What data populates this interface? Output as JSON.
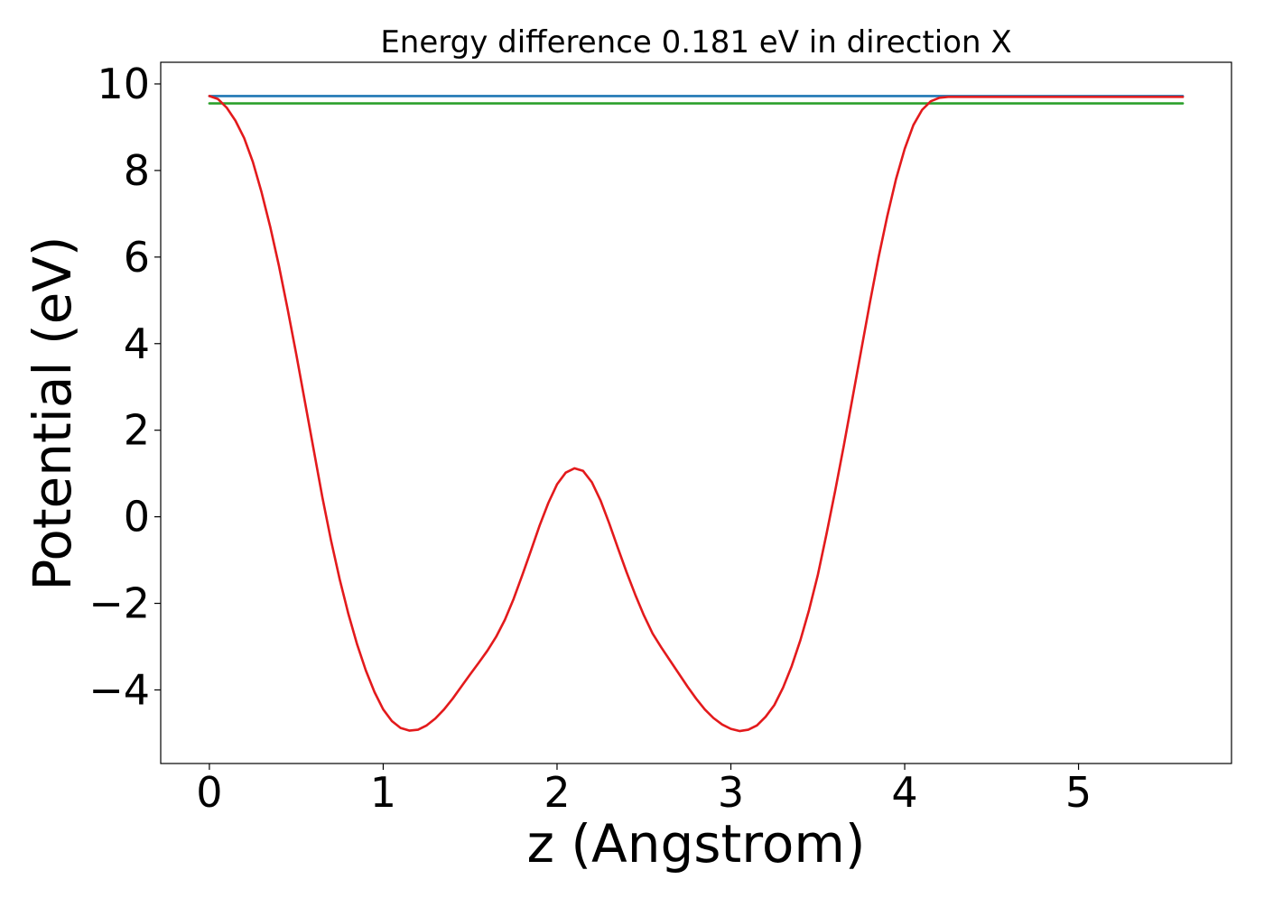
{
  "chart_data": {
    "type": "line",
    "title": "Energy difference 0.181 eV in direction X",
    "xlabel": "z (Angstrom)",
    "ylabel": "Potential (eV)",
    "xlim": [
      -0.28,
      5.88
    ],
    "ylim": [
      -5.7,
      10.5
    ],
    "xticks": [
      0,
      1,
      2,
      3,
      4,
      5
    ],
    "xtick_labels": [
      "0",
      "1",
      "2",
      "3",
      "4",
      "5"
    ],
    "yticks": [
      -4,
      -2,
      0,
      2,
      4,
      6,
      8,
      10
    ],
    "ytick_labels": [
      "−4",
      "−2",
      "0",
      "2",
      "4",
      "6",
      "8",
      "10"
    ],
    "grid": false,
    "series": [
      {
        "color": "#1f77b4",
        "x": [
          0,
          5.6
        ],
        "y": [
          9.72,
          9.72
        ]
      },
      {
        "color": "#2ca02c",
        "x": [
          0,
          5.6
        ],
        "y": [
          9.55,
          9.55
        ]
      },
      {
        "color": "#e31a1c",
        "x": [
          0,
          0.05,
          0.1,
          0.15,
          0.2,
          0.25,
          0.3,
          0.35,
          0.4,
          0.45,
          0.5,
          0.55,
          0.6,
          0.65,
          0.7,
          0.75,
          0.8,
          0.85,
          0.9,
          0.95,
          1.0,
          1.05,
          1.1,
          1.15,
          1.2,
          1.25,
          1.3,
          1.35,
          1.4,
          1.45,
          1.5,
          1.55,
          1.6,
          1.65,
          1.7,
          1.75,
          1.8,
          1.85,
          1.9,
          1.95,
          2.0,
          2.05,
          2.1,
          2.15,
          2.2,
          2.25,
          2.3,
          2.35,
          2.4,
          2.45,
          2.5,
          2.55,
          2.6,
          2.65,
          2.7,
          2.75,
          2.8,
          2.85,
          2.9,
          2.95,
          3.0,
          3.05,
          3.1,
          3.15,
          3.2,
          3.25,
          3.3,
          3.35,
          3.4,
          3.45,
          3.5,
          3.55,
          3.6,
          3.65,
          3.7,
          3.75,
          3.8,
          3.85,
          3.9,
          3.95,
          4.0,
          4.05,
          4.1,
          4.15,
          4.2,
          4.25,
          4.3,
          4.35,
          4.4,
          4.45,
          4.5,
          4.55,
          4.6,
          4.65,
          4.7,
          4.75,
          4.8,
          4.85,
          4.9,
          4.95,
          5.0,
          5.05,
          5.1,
          5.15,
          5.2,
          5.25,
          5.3,
          5.35,
          5.4,
          5.45,
          5.5,
          5.55,
          5.6
        ],
        "y": [
          9.72,
          9.65,
          9.45,
          9.15,
          8.75,
          8.2,
          7.5,
          6.7,
          5.8,
          4.8,
          3.75,
          2.65,
          1.55,
          0.45,
          -0.55,
          -1.45,
          -2.25,
          -2.95,
          -3.55,
          -4.05,
          -4.45,
          -4.72,
          -4.88,
          -4.94,
          -4.92,
          -4.82,
          -4.66,
          -4.45,
          -4.2,
          -3.92,
          -3.64,
          -3.37,
          -3.09,
          -2.77,
          -2.38,
          -1.9,
          -1.35,
          -0.78,
          -0.2,
          0.32,
          0.75,
          1.02,
          1.12,
          1.06,
          0.8,
          0.38,
          -0.15,
          -0.72,
          -1.28,
          -1.8,
          -2.28,
          -2.7,
          -3.02,
          -3.32,
          -3.62,
          -3.92,
          -4.2,
          -4.45,
          -4.65,
          -4.8,
          -4.9,
          -4.95,
          -4.92,
          -4.82,
          -4.62,
          -4.35,
          -3.95,
          -3.45,
          -2.85,
          -2.15,
          -1.35,
          -0.4,
          0.6,
          1.65,
          2.75,
          3.85,
          4.95,
          6.0,
          6.95,
          7.8,
          8.5,
          9.05,
          9.4,
          9.6,
          9.68,
          9.7,
          9.7,
          9.7,
          9.7,
          9.7,
          9.7,
          9.7,
          9.7,
          9.7,
          9.7,
          9.7,
          9.7,
          9.7,
          9.7,
          9.7,
          9.7,
          9.7,
          9.7,
          9.7,
          9.7,
          9.7,
          9.7,
          9.7,
          9.7,
          9.7,
          9.7,
          9.7,
          9.7
        ]
      }
    ]
  }
}
